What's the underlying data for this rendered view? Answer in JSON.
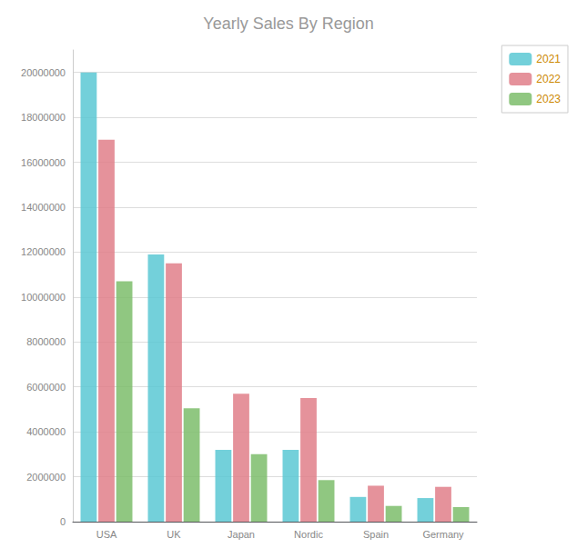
{
  "chart_data": {
    "type": "bar",
    "title": "Yearly Sales By Region",
    "categories": [
      "USA",
      "UK",
      "Japan",
      "Nordic",
      "Spain",
      "Germany"
    ],
    "series": [
      {
        "name": "2021",
        "color": "#5BC8D4",
        "values": [
          20000000,
          11900000,
          3200000,
          3200000,
          1100000,
          1050000
        ]
      },
      {
        "name": "2022",
        "color": "#E07F8A",
        "values": [
          17000000,
          11500000,
          5700000,
          5500000,
          1600000,
          1550000
        ]
      },
      {
        "name": "2023",
        "color": "#7DBD6B",
        "values": [
          10700000,
          5050000,
          3000000,
          1850000,
          700000,
          650000
        ]
      }
    ],
    "ylim": [
      0,
      21000000
    ],
    "yticks": [
      0,
      2000000,
      4000000,
      6000000,
      8000000,
      10000000,
      12000000,
      14000000,
      16000000,
      18000000,
      20000000
    ],
    "grid": true,
    "legend": "upper right"
  }
}
